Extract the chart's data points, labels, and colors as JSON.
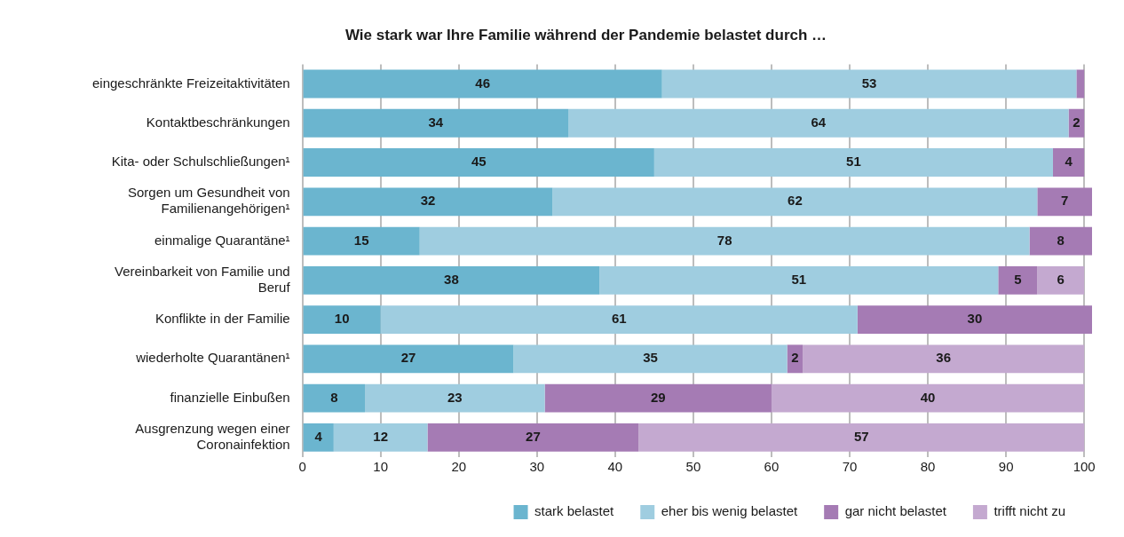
{
  "chart_data": {
    "type": "bar",
    "orientation": "horizontal",
    "stacked": true,
    "title": "Wie stark war Ihre Familie während der Pandemie belastet durch …",
    "categories": [
      "eingeschränkte Freizeitaktivitäten",
      "Kontaktbeschränkungen",
      "Kita- oder Schulschließungen¹",
      "Sorgen um Gesundheit von Familienangehörigen¹",
      "einmalige Quarantäne¹",
      "Vereinbarkeit von Familie und Beruf",
      "Konflikte in der Familie",
      "wiederholte Quarantänen¹",
      "finanzielle Einbußen",
      "Ausgrenzung wegen einer Coronainfektion"
    ],
    "series": [
      {
        "name": "stark belastet",
        "color": "#6bb5cf",
        "values": [
          46,
          34,
          45,
          32,
          15,
          38,
          10,
          27,
          8,
          4
        ]
      },
      {
        "name": "eher bis wenig belastet",
        "color": "#9fcde0",
        "values": [
          53,
          64,
          51,
          62,
          78,
          51,
          61,
          35,
          23,
          12
        ]
      },
      {
        "name": "gar nicht belastet",
        "color": "#a57bb4",
        "values": [
          1,
          2,
          4,
          7,
          8,
          5,
          30,
          2,
          29,
          27
        ],
        "value_labels": [
          null,
          "2",
          "4",
          "7",
          "8",
          "5",
          "30",
          "2",
          "29",
          "27"
        ]
      },
      {
        "name": "trifft nicht zu",
        "color": "#c4a9d0",
        "values": [
          null,
          null,
          null,
          null,
          null,
          6,
          null,
          36,
          40,
          57
        ]
      }
    ],
    "data_labels": true,
    "xlim": [
      0,
      101
    ],
    "xticks": [
      0,
      10,
      20,
      30,
      40,
      50,
      60,
      70,
      80,
      90,
      100
    ],
    "grid": "x",
    "legend": "bottom"
  }
}
